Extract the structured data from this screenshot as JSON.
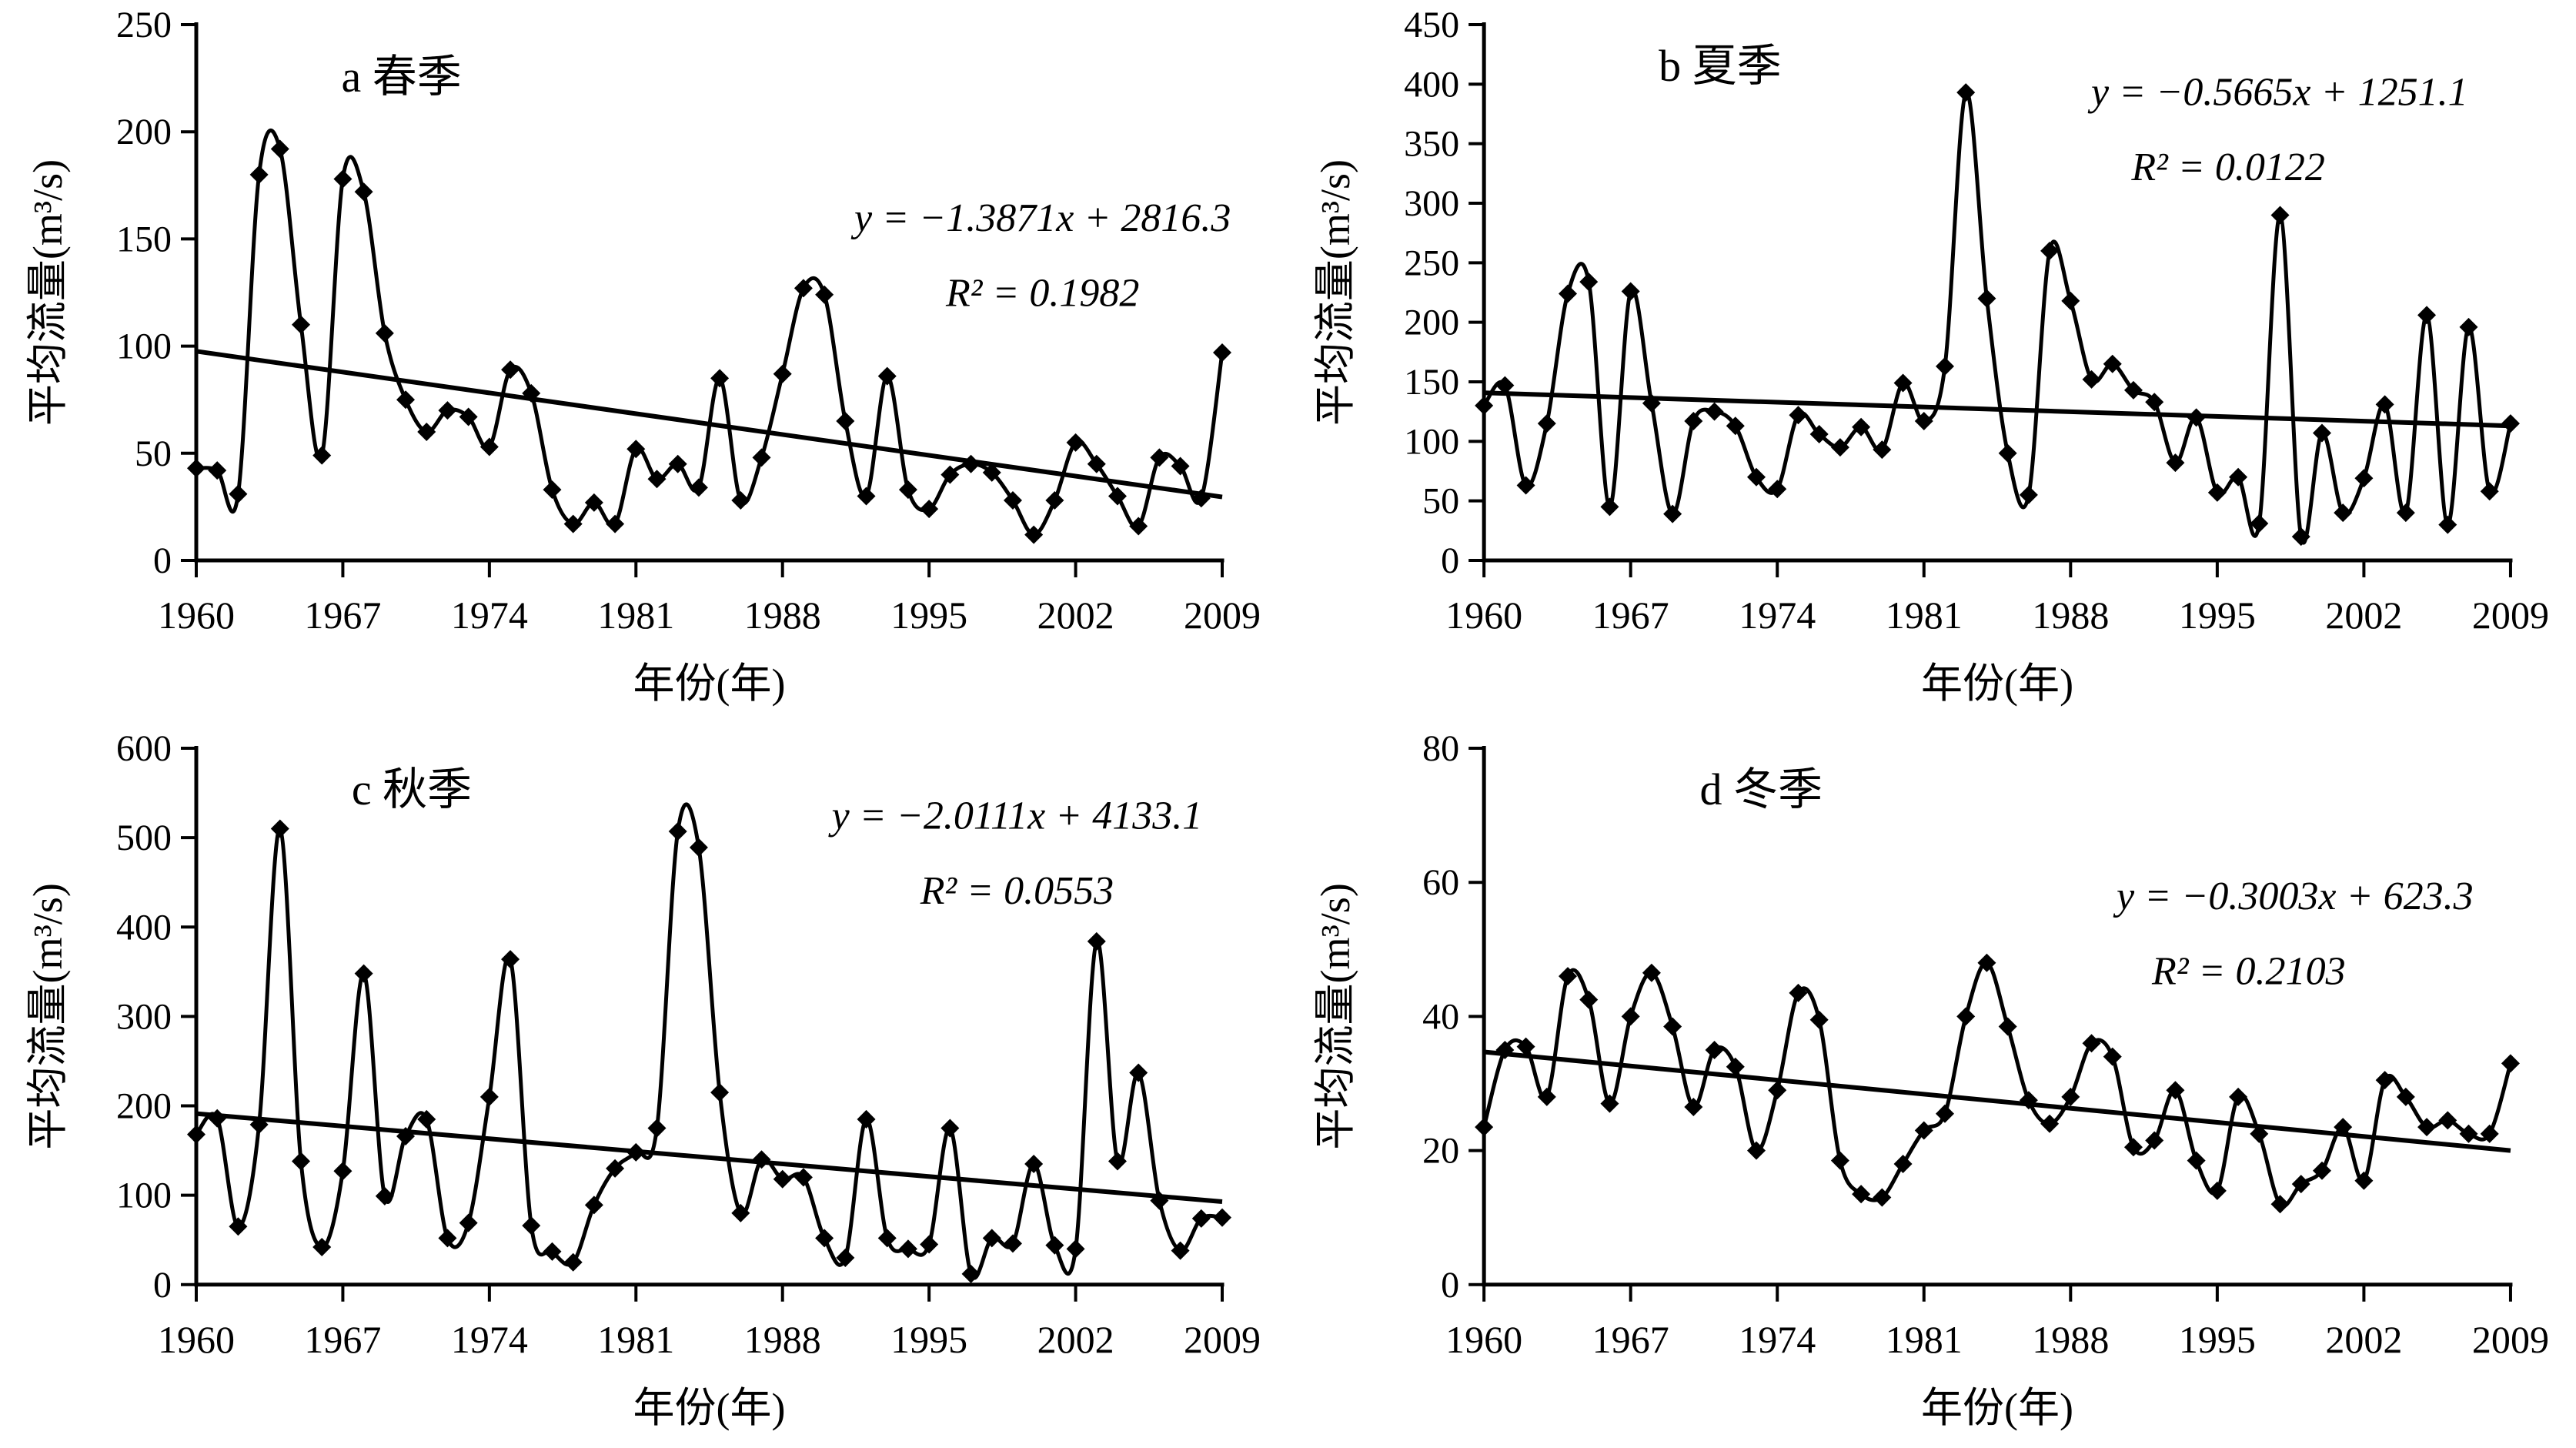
{
  "figure": {
    "background": "#ffffff",
    "foreground": "#000000",
    "xlabel": "年份(年)",
    "ylabel": "平均流量(m³/s)"
  },
  "chart_data": [
    {
      "type": "line",
      "panel": "a",
      "title": "a 春季",
      "equation": "y = −1.3871x + 2816.3",
      "r_squared": "R² = 0.1982",
      "trend": {
        "slope": -1.3871,
        "intercept": 2816.3
      },
      "xlabel": "年份(年)",
      "ylabel": "平均流量(m³/s)",
      "x_range": [
        1960,
        2009
      ],
      "x_ticks": [
        1960,
        1967,
        1974,
        1981,
        1988,
        1995,
        2002,
        2009
      ],
      "ylim": [
        0,
        250
      ],
      "ytick_step": 50,
      "marker": "diamond",
      "color": "#000000",
      "grid": false,
      "legend": null,
      "values": [
        43,
        42,
        31,
        180,
        192,
        110,
        49,
        178,
        172,
        106,
        75,
        60,
        70,
        67,
        53,
        89,
        78,
        33,
        17,
        27,
        17,
        52,
        38,
        45,
        34,
        85,
        28,
        48,
        87,
        127,
        124,
        65,
        30,
        86,
        33,
        24,
        40,
        45,
        41,
        28,
        12,
        28,
        55,
        45,
        30,
        16,
        48,
        44,
        29,
        97
      ]
    },
    {
      "type": "line",
      "panel": "b",
      "title": "b 夏季",
      "equation": "y = −0.5665x + 1251.1",
      "r_squared": "R² = 0.0122",
      "trend": {
        "slope": -0.5665,
        "intercept": 1251.1
      },
      "xlabel": "年份(年)",
      "ylabel": "平均流量(m³/s)",
      "x_range": [
        1960,
        2009
      ],
      "x_ticks": [
        1960,
        1967,
        1974,
        1981,
        1988,
        1995,
        2002,
        2009
      ],
      "ylim": [
        0,
        450
      ],
      "ytick_step": 50,
      "marker": "diamond",
      "color": "#000000",
      "grid": false,
      "legend": null,
      "values": [
        130,
        147,
        63,
        115,
        224,
        234,
        45,
        226,
        132,
        39,
        117,
        125,
        113,
        70,
        60,
        122,
        106,
        95,
        112,
        93,
        149,
        117,
        163,
        393,
        220,
        90,
        55,
        260,
        218,
        152,
        165,
        143,
        133,
        82,
        120,
        57,
        70,
        31,
        290,
        20,
        107,
        40,
        69,
        131,
        40,
        206,
        30,
        196,
        58,
        115
      ]
    },
    {
      "type": "line",
      "panel": "c",
      "title": "c 秋季",
      "equation": "y = −2.0111x + 4133.1",
      "r_squared": "R² = 0.0553",
      "trend": {
        "slope": -2.0111,
        "intercept": 4133.1
      },
      "xlabel": "年份(年)",
      "ylabel": "平均流量(m³/s)",
      "x_range": [
        1960,
        2009
      ],
      "x_ticks": [
        1960,
        1967,
        1974,
        1981,
        1988,
        1995,
        2002,
        2009
      ],
      "ylim": [
        0,
        600
      ],
      "ytick_step": 100,
      "marker": "diamond",
      "color": "#000000",
      "grid": false,
      "legend": null,
      "values": [
        168,
        186,
        65,
        179,
        510,
        138,
        42,
        127,
        348,
        99,
        166,
        185,
        52,
        69,
        210,
        364,
        66,
        37,
        25,
        89,
        130,
        148,
        175,
        507,
        489,
        215,
        80,
        140,
        118,
        120,
        52,
        30,
        185,
        52,
        40,
        45,
        175,
        12,
        52,
        46,
        135,
        44,
        40,
        384,
        138,
        237,
        94,
        38,
        74,
        75
      ]
    },
    {
      "type": "line",
      "panel": "d",
      "title": "d 冬季",
      "equation": "y = −0.3003x + 623.3",
      "r_squared": "R² = 0.2103",
      "trend": {
        "slope": -0.3003,
        "intercept": 623.3
      },
      "xlabel": "年份(年)",
      "ylabel": "平均流量(m³/s)",
      "x_range": [
        1960,
        2009
      ],
      "x_ticks": [
        1960,
        1967,
        1974,
        1981,
        1988,
        1995,
        2002,
        2009
      ],
      "ylim": [
        0,
        80
      ],
      "ytick_step": 20,
      "marker": "diamond",
      "color": "#000000",
      "grid": false,
      "legend": null,
      "values": [
        23.5,
        35,
        35.5,
        28,
        46,
        42.5,
        27,
        40,
        46.5,
        38.5,
        26.5,
        35,
        32.5,
        20,
        29,
        43.5,
        39.5,
        18.5,
        13.5,
        13,
        18,
        23,
        25.5,
        40,
        48,
        38.5,
        27.5,
        24,
        28,
        36,
        34,
        20.5,
        21.5,
        29,
        18.5,
        14,
        28,
        22.5,
        12,
        15,
        17,
        23.5,
        15.5,
        30.5,
        28,
        23.5,
        24.5,
        22.5,
        22.5,
        33
      ]
    }
  ]
}
